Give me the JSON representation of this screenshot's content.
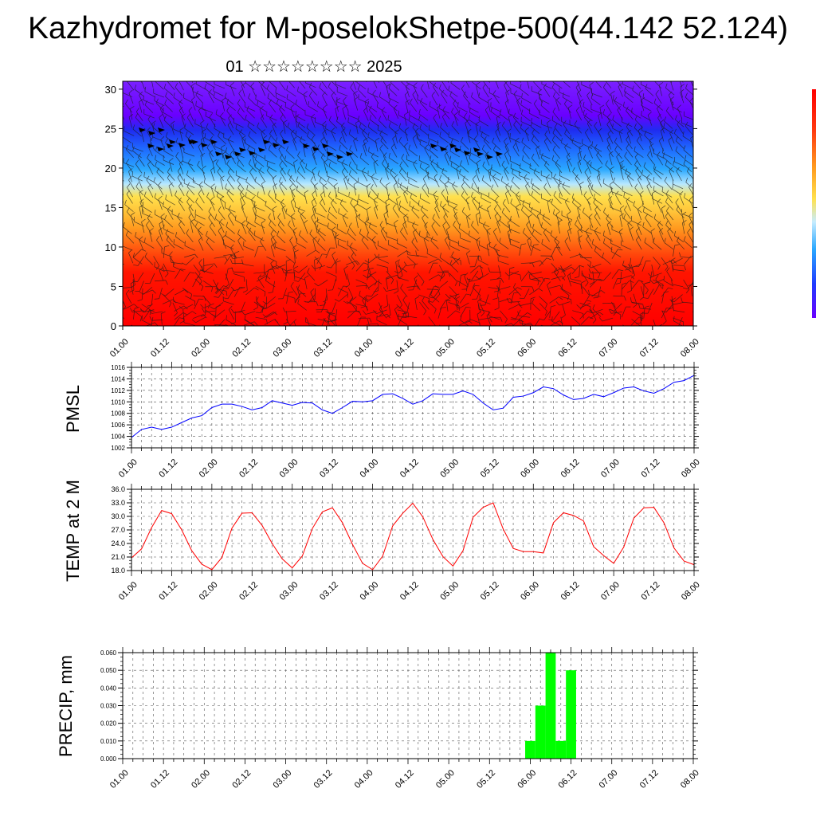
{
  "title": "Kazhydromet for M-poselokShetpe-500(44.142 52.124)",
  "subtitle": "01 ☆☆☆☆☆☆☆☆ 2025",
  "x_ticks": [
    "01.00",
    "01.12",
    "02.00",
    "02.12",
    "03.00",
    "03.12",
    "04.00",
    "04.12",
    "05.00",
    "05.12",
    "06.00",
    "06.12",
    "07.00",
    "07.12",
    "08.00"
  ],
  "chart_data": [
    {
      "type": "heatmap",
      "name": "wind-temperature cross-section",
      "xlabel": "",
      "ylabel": "",
      "x_ticks": [
        "01.00",
        "01.12",
        "02.00",
        "02.12",
        "03.00",
        "03.12",
        "04.00",
        "04.12",
        "05.00",
        "05.12",
        "06.00",
        "06.12",
        "07.00",
        "07.12",
        "08.00"
      ],
      "y_ticks": [
        0,
        5,
        10,
        15,
        20,
        25,
        30
      ],
      "ylim": [
        0,
        31
      ],
      "overlay": "wind barbs",
      "colorbar": [
        "#6a00ff",
        "#1f3cff",
        "#2aa8ff",
        "#c6ecff",
        "#ffe14d",
        "#ff9a1f",
        "#ff3a10",
        "#ff0000"
      ]
    },
    {
      "type": "line",
      "ylabel": "PMSL",
      "ylim": [
        1002,
        1016
      ],
      "y_ticks": [
        1002,
        1004,
        1006,
        1008,
        1010,
        1012,
        1014,
        1016
      ],
      "color": "#0000ff",
      "values": [
        1003.8,
        1005.2,
        1005.6,
        1005.2,
        1005.6,
        1006.4,
        1007.2,
        1007.6,
        1009.0,
        1009.6,
        1009.6,
        1009.2,
        1008.6,
        1009.0,
        1010.2,
        1009.8,
        1009.4,
        1009.9,
        1009.8,
        1008.6,
        1008.0,
        1009.0,
        1010.1,
        1010.0,
        1010.2,
        1011.3,
        1011.4,
        1010.6,
        1009.6,
        1010.2,
        1011.4,
        1011.3,
        1011.3,
        1011.9,
        1011.3,
        1009.8,
        1008.6,
        1008.9,
        1010.8,
        1011.0,
        1011.6,
        1012.6,
        1012.3,
        1011.2,
        1010.4,
        1010.6,
        1011.3,
        1010.9,
        1011.6,
        1012.4,
        1012.6,
        1011.9,
        1011.5,
        1012.3,
        1013.4,
        1013.7,
        1014.6
      ]
    },
    {
      "type": "line",
      "ylabel": "TEMP at 2 M",
      "ylim": [
        18,
        36
      ],
      "y_ticks": [
        "18.0",
        "21.0",
        "24.0",
        "27.0",
        "30.0",
        "33.0",
        "36.0"
      ],
      "color": "#ff0000",
      "values": [
        20.8,
        22.8,
        27.5,
        31.3,
        30.6,
        27.0,
        22.4,
        19.4,
        18.2,
        20.9,
        27.4,
        30.7,
        30.8,
        28.0,
        24.0,
        20.6,
        18.6,
        21.2,
        27.3,
        31.0,
        31.9,
        28.6,
        23.8,
        19.6,
        18.2,
        21.2,
        27.9,
        30.7,
        32.9,
        29.9,
        24.9,
        21.1,
        19.0,
        22.4,
        29.8,
        32.0,
        33.0,
        27.2,
        22.9,
        22.2,
        22.2,
        21.9,
        28.6,
        30.8,
        30.2,
        29.0,
        23.3,
        21.3,
        19.6,
        23.2,
        29.6,
        31.9,
        32.0,
        28.6,
        23.0,
        20.1,
        19.3
      ]
    },
    {
      "type": "bar",
      "ylabel": "PRECIP, mm",
      "ylim": [
        0,
        0.06
      ],
      "y_ticks": [
        "0.000",
        "0.010",
        "0.020",
        "0.030",
        "0.040",
        "0.050",
        "0.060"
      ],
      "color": "#00ff00",
      "bars": [
        {
          "x": 40,
          "value": 0.01
        },
        {
          "x": 41,
          "value": 0.03
        },
        {
          "x": 42,
          "value": 0.06
        },
        {
          "x": 43,
          "value": 0.01
        },
        {
          "x": 44,
          "value": 0.05
        }
      ]
    }
  ]
}
